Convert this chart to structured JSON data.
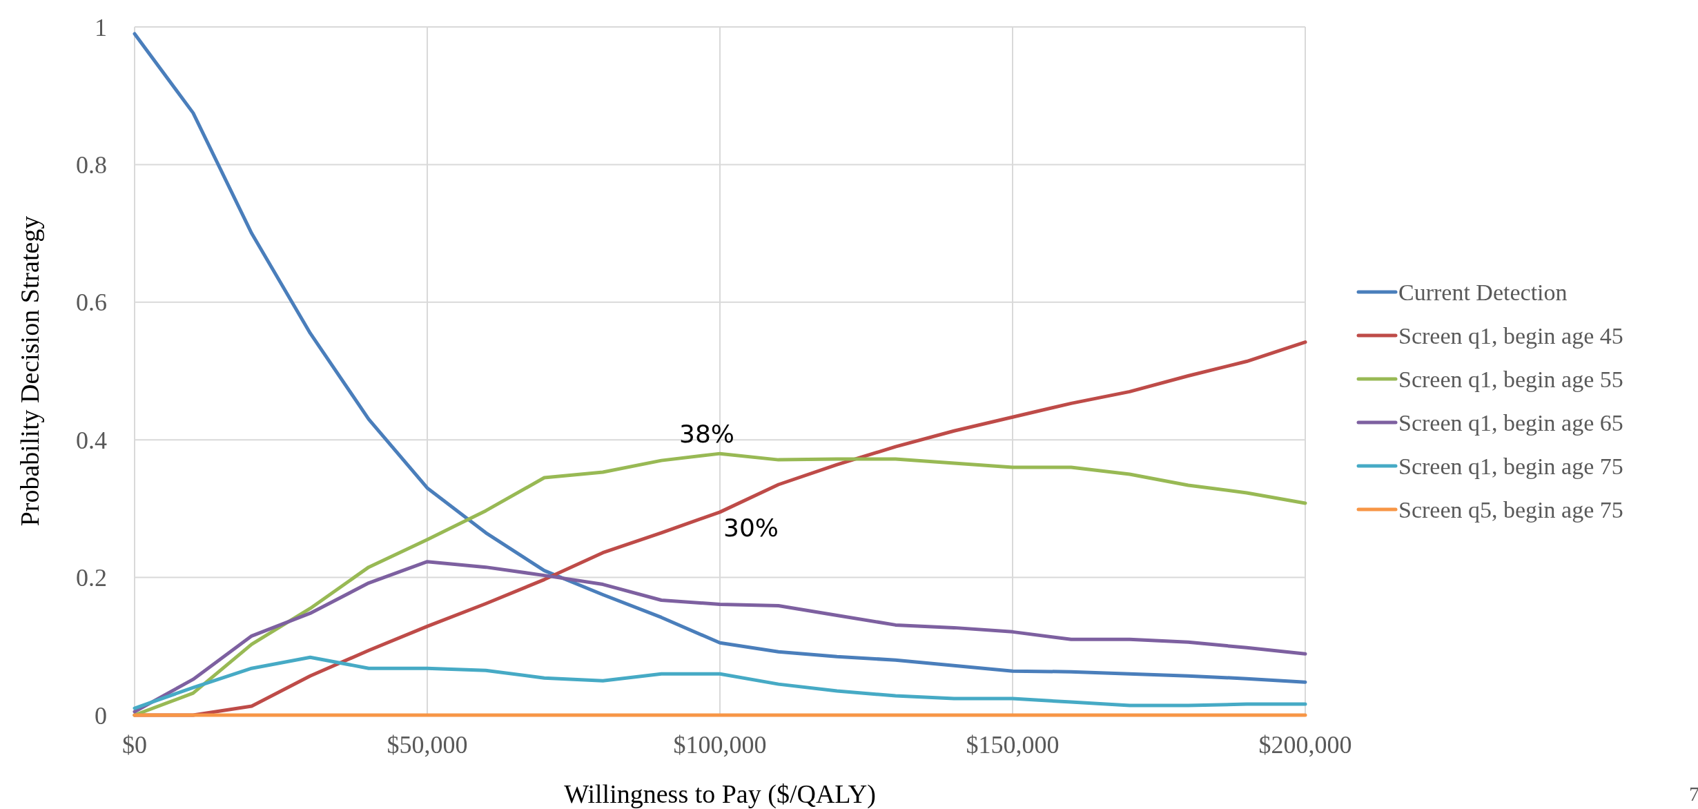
{
  "chart_data": {
    "type": "line",
    "xlabel": "Willingness to Pay ($/QALY)",
    "ylabel": "Probability Decision Strategy",
    "x": [
      0,
      10000,
      20000,
      30000,
      40000,
      50000,
      60000,
      70000,
      80000,
      90000,
      100000,
      110000,
      120000,
      130000,
      140000,
      150000,
      160000,
      170000,
      180000,
      190000,
      200000
    ],
    "series": [
      {
        "name": "Current Detection",
        "color": "#4a7ebb",
        "values": [
          0.99,
          0.875,
          0.7,
          0.555,
          0.43,
          0.33,
          0.265,
          0.21,
          0.175,
          0.142,
          0.105,
          0.092,
          0.085,
          0.08,
          0.072,
          0.064,
          0.063,
          0.06,
          0.057,
          0.053,
          0.048
        ]
      },
      {
        "name": "Screen q1, begin age 45",
        "color": "#be4b48",
        "values": [
          0,
          0,
          0.013,
          0.057,
          0.094,
          0.129,
          0.162,
          0.197,
          0.236,
          0.265,
          0.295,
          0.335,
          0.364,
          0.39,
          0.413,
          0.433,
          0.453,
          0.47,
          0.493,
          0.514,
          0.542
        ]
      },
      {
        "name": "Screen q1, begin age 55",
        "color": "#98b954",
        "values": [
          0,
          0.032,
          0.103,
          0.155,
          0.215,
          0.255,
          0.297,
          0.345,
          0.353,
          0.37,
          0.38,
          0.371,
          0.372,
          0.372,
          0.366,
          0.36,
          0.36,
          0.35,
          0.334,
          0.323,
          0.308
        ]
      },
      {
        "name": "Screen q1, begin age 65",
        "color": "#7d60a0",
        "values": [
          0.005,
          0.052,
          0.115,
          0.148,
          0.192,
          0.223,
          0.215,
          0.203,
          0.19,
          0.167,
          0.161,
          0.159,
          0.145,
          0.131,
          0.127,
          0.121,
          0.11,
          0.11,
          0.106,
          0.098,
          0.089
        ]
      },
      {
        "name": "Screen q1, begin age 75",
        "color": "#46aac5",
        "values": [
          0.01,
          0.04,
          0.068,
          0.084,
          0.068,
          0.068,
          0.065,
          0.054,
          0.05,
          0.06,
          0.06,
          0.045,
          0.035,
          0.028,
          0.024,
          0.024,
          0.019,
          0.014,
          0.014,
          0.016,
          0.016
        ]
      },
      {
        "name": "Screen q5, begin age 75",
        "color": "#f79646",
        "values": [
          0,
          0,
          0,
          0,
          0,
          0,
          0,
          0,
          0,
          0,
          0,
          0,
          0,
          0,
          0,
          0,
          0,
          0,
          0,
          0,
          0
        ]
      }
    ],
    "xlim": [
      0,
      200000
    ],
    "xticks": [
      {
        "value": 0,
        "label": "$0"
      },
      {
        "value": 50000,
        "label": "$50,000"
      },
      {
        "value": 100000,
        "label": "$100,000"
      },
      {
        "value": 150000,
        "label": "$150,000"
      },
      {
        "value": 200000,
        "label": "$200,000"
      }
    ],
    "ylim": [
      0,
      1
    ],
    "yticks": [
      0,
      0.2,
      0.4,
      0.6,
      0.8,
      1
    ],
    "grid": true,
    "legend": "right",
    "marker": "none",
    "line_style": "solid",
    "annotations": [
      "38%",
      "30%",
      "7"
    ]
  }
}
